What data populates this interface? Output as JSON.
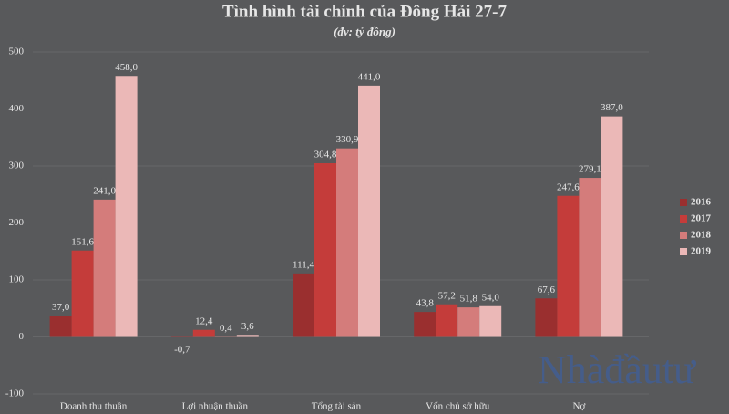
{
  "chart_data": {
    "type": "bar",
    "title": "Tình hình tài chính của Đông Hải 27-7",
    "subtitle": "(đv: tỷ đồng)",
    "categories": [
      "Doanh thu thuần",
      "Lợi nhuận  thuần",
      "Tổng tài sản",
      "Vốn chủ sở hữu",
      "Nợ"
    ],
    "series": [
      {
        "name": "2016",
        "color": "#9a2f2f",
        "values": [
          37.0,
          -0.7,
          111.4,
          43.8,
          67.6
        ],
        "value_labels": [
          "37,0",
          "-0,7",
          "111,4",
          "43,8",
          "67,6"
        ]
      },
      {
        "name": "2017",
        "color": "#c43c3a",
        "values": [
          151.6,
          12.4,
          304.8,
          57.2,
          247.6
        ],
        "value_labels": [
          "151,6",
          "12,4",
          "304,8",
          "57,2",
          "247,6"
        ]
      },
      {
        "name": "2018",
        "color": "#d47c7b",
        "values": [
          241.0,
          0.4,
          330.9,
          51.8,
          279.1
        ],
        "value_labels": [
          "241,0",
          "0,4",
          "330,9",
          "51,8",
          "279,1"
        ]
      },
      {
        "name": "2019",
        "color": "#ebb8b7",
        "values": [
          458.0,
          3.6,
          441.0,
          54.0,
          387.0
        ],
        "value_labels": [
          "458,0",
          "3,6",
          "441,0",
          "54,0",
          "387,0"
        ]
      }
    ],
    "ylim": [
      -100,
      500
    ],
    "yticks": [
      -100,
      0,
      100,
      200,
      300,
      400,
      500
    ],
    "grid": true,
    "legend": "right",
    "watermark": "Nhàđầutư"
  }
}
